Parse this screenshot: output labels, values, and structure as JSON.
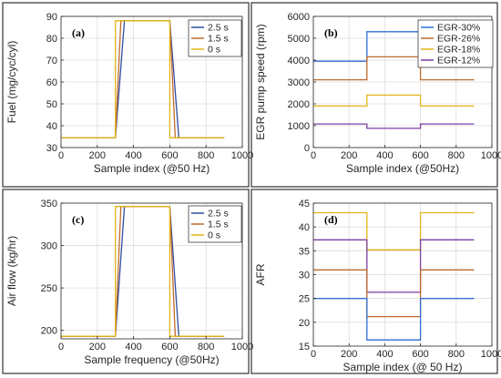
{
  "chart_data": [
    {
      "type": "line",
      "panel_label": "(a)",
      "xlabel": "Sample index (@50 Hz)",
      "ylabel": "Fuel (mg/cyc/cyl)",
      "xlim": [
        0,
        1000
      ],
      "ylim": [
        30,
        90
      ],
      "xticks": [
        0,
        200,
        400,
        600,
        800,
        1000
      ],
      "yticks": [
        30,
        40,
        50,
        60,
        70,
        80,
        90
      ],
      "grid": true,
      "legend_position": "top-right",
      "series": [
        {
          "name": "2.5 s",
          "color": "#2f4fa3",
          "x": [
            0,
            300,
            350,
            600,
            650,
            900
          ],
          "y": [
            34.5,
            34.5,
            88,
            88,
            34.5,
            34.5
          ]
        },
        {
          "name": "1.5 s",
          "color": "#c06a2b",
          "x": [
            0,
            300,
            330,
            600,
            630,
            900
          ],
          "y": [
            34.5,
            34.5,
            88,
            88,
            34.5,
            34.5
          ]
        },
        {
          "name": "0 s",
          "color": "#e2b418",
          "x": [
            0,
            300,
            300,
            600,
            600,
            900
          ],
          "y": [
            34.5,
            34.5,
            88,
            88,
            34.5,
            34.5
          ]
        }
      ]
    },
    {
      "type": "line",
      "panel_label": "(b)",
      "xlabel": "Sample index (@50Hz)",
      "ylabel": "EGR pump speed (rpm)",
      "xlim": [
        0,
        1000
      ],
      "ylim": [
        0,
        6000
      ],
      "xticks": [
        0,
        200,
        400,
        600,
        800,
        1000
      ],
      "yticks": [
        0,
        1000,
        2000,
        3000,
        4000,
        5000,
        6000
      ],
      "grid": true,
      "legend_position": "top-right",
      "series": [
        {
          "name": "EGR-30%",
          "color": "#2f6fd6",
          "x": [
            0,
            300,
            300,
            600,
            600,
            900
          ],
          "y": [
            3950,
            3950,
            5300,
            5300,
            3950,
            3950
          ]
        },
        {
          "name": "EGR-26%",
          "color": "#c06a2b",
          "x": [
            0,
            300,
            300,
            600,
            600,
            900
          ],
          "y": [
            3100,
            3100,
            4150,
            4150,
            3100,
            3100
          ]
        },
        {
          "name": "EGR-18%",
          "color": "#e2b418",
          "x": [
            0,
            300,
            300,
            600,
            600,
            900
          ],
          "y": [
            1900,
            1900,
            2400,
            2400,
            1900,
            1900
          ]
        },
        {
          "name": "EGR-12%",
          "color": "#7b3fa0",
          "x": [
            0,
            300,
            300,
            600,
            600,
            900
          ],
          "y": [
            1080,
            1080,
            880,
            880,
            1080,
            1080
          ]
        }
      ]
    },
    {
      "type": "line",
      "panel_label": "(c)",
      "xlabel": "Sample frequency (@50Hz)",
      "ylabel": "Air flow (kg/hr)",
      "xlim": [
        0,
        1000
      ],
      "ylim": [
        190,
        350
      ],
      "xticks": [
        0,
        200,
        400,
        600,
        800,
        1000
      ],
      "yticks": [
        200,
        250,
        300,
        350
      ],
      "grid": true,
      "legend_position": "top-right",
      "series": [
        {
          "name": "2.5 s",
          "color": "#2f4fa3",
          "x": [
            0,
            300,
            350,
            600,
            650,
            900
          ],
          "y": [
            193,
            193,
            346,
            346,
            193,
            193
          ]
        },
        {
          "name": "1.5 s",
          "color": "#c06a2b",
          "x": [
            0,
            300,
            330,
            600,
            630,
            900
          ],
          "y": [
            193,
            193,
            346,
            346,
            193,
            193
          ]
        },
        {
          "name": "0 s",
          "color": "#e2b418",
          "x": [
            0,
            300,
            300,
            600,
            600,
            900
          ],
          "y": [
            193,
            193,
            346,
            346,
            193,
            193
          ]
        }
      ]
    },
    {
      "type": "line",
      "panel_label": "(d)",
      "xlabel": "Sample index (@ 50 Hz)",
      "ylabel": "AFR",
      "xlim": [
        0,
        1000
      ],
      "ylim": [
        15,
        45
      ],
      "xticks": [
        0,
        200,
        400,
        600,
        800,
        1000
      ],
      "yticks": [
        15,
        20,
        25,
        30,
        35,
        40,
        45
      ],
      "grid": true,
      "legend_position": "none",
      "series": [
        {
          "color": "#e2b418",
          "x": [
            0,
            300,
            300,
            600,
            600,
            900
          ],
          "y": [
            43,
            43,
            35.2,
            35.2,
            43,
            43
          ]
        },
        {
          "color": "#7b3fa0",
          "x": [
            0,
            300,
            300,
            600,
            600,
            900
          ],
          "y": [
            37.3,
            37.3,
            26.3,
            26.3,
            37.3,
            37.3
          ]
        },
        {
          "color": "#c06a2b",
          "x": [
            0,
            300,
            300,
            600,
            600,
            900
          ],
          "y": [
            31,
            31,
            21.2,
            21.2,
            31,
            31
          ]
        },
        {
          "color": "#2f6fd6",
          "x": [
            0,
            300,
            300,
            600,
            600,
            900
          ],
          "y": [
            25,
            25,
            16.3,
            16.3,
            25,
            25
          ]
        }
      ]
    }
  ]
}
